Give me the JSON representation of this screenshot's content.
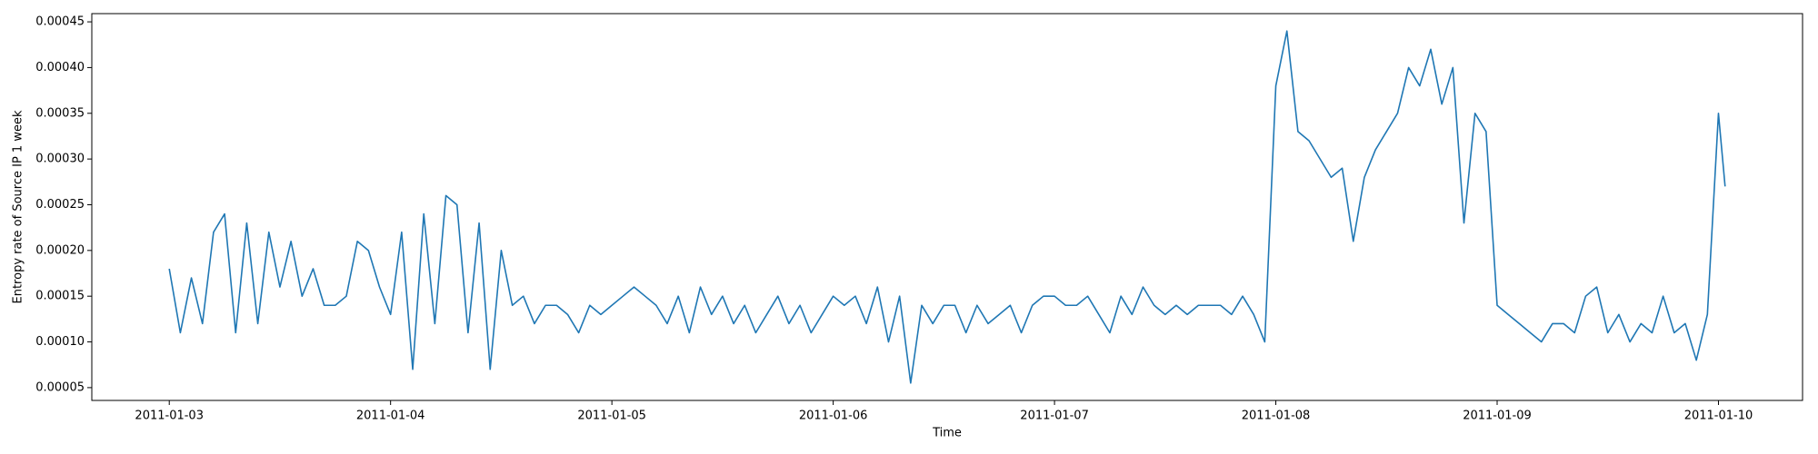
{
  "chart_data": {
    "type": "line",
    "xlabel": "Time",
    "ylabel": "Entropy rate of Source IP 1 week",
    "xlim": [
      2.65,
      10.38
    ],
    "ylim": [
      3.6e-05,
      0.000459
    ],
    "xticks": [
      {
        "value": 3,
        "label": "2011-01-03"
      },
      {
        "value": 4,
        "label": "2011-01-04"
      },
      {
        "value": 5,
        "label": "2011-01-05"
      },
      {
        "value": 6,
        "label": "2011-01-06"
      },
      {
        "value": 7,
        "label": "2011-01-07"
      },
      {
        "value": 8,
        "label": "2011-01-08"
      },
      {
        "value": 9,
        "label": "2011-01-09"
      },
      {
        "value": 10,
        "label": "2011-01-10"
      }
    ],
    "yticks": [
      5e-05,
      {
        "value": 0.0001,
        "label": "0.00010"
      },
      0.00015,
      {
        "value": 0.0002,
        "label": "0.00020"
      },
      0.00025,
      {
        "value": 0.0003,
        "label": "0.00030"
      },
      0.00035,
      {
        "value": 0.0004,
        "label": "0.00040"
      },
      0.00045
    ],
    "x": [
      3.0,
      3.05,
      3.1,
      3.15,
      3.2,
      3.25,
      3.3,
      3.35,
      3.4,
      3.45,
      3.5,
      3.55,
      3.6,
      3.65,
      3.7,
      3.75,
      3.8,
      3.85,
      3.9,
      3.95,
      4.0,
      4.05,
      4.1,
      4.15,
      4.2,
      4.25,
      4.3,
      4.35,
      4.4,
      4.45,
      4.5,
      4.55,
      4.6,
      4.65,
      4.7,
      4.75,
      4.8,
      4.85,
      4.9,
      4.95,
      5.0,
      5.05,
      5.1,
      5.15,
      5.2,
      5.25,
      5.3,
      5.35,
      5.4,
      5.45,
      5.5,
      5.55,
      5.6,
      5.65,
      5.7,
      5.75,
      5.8,
      5.85,
      5.9,
      5.95,
      6.0,
      6.05,
      6.1,
      6.15,
      6.2,
      6.25,
      6.3,
      6.35,
      6.4,
      6.45,
      6.5,
      6.55,
      6.6,
      6.65,
      6.7,
      6.75,
      6.8,
      6.85,
      6.9,
      6.95,
      7.0,
      7.05,
      7.1,
      7.15,
      7.2,
      7.25,
      7.3,
      7.35,
      7.4,
      7.45,
      7.5,
      7.55,
      7.6,
      7.65,
      7.7,
      7.75,
      7.8,
      7.85,
      7.9,
      7.95,
      8.0,
      8.05,
      8.1,
      8.15,
      8.2,
      8.25,
      8.3,
      8.35,
      8.4,
      8.45,
      8.5,
      8.55,
      8.6,
      8.65,
      8.7,
      8.75,
      8.8,
      8.85,
      8.9,
      8.95,
      9.0,
      9.05,
      9.1,
      9.15,
      9.2,
      9.25,
      9.3,
      9.35,
      9.4,
      9.45,
      9.5,
      9.55,
      9.6,
      9.65,
      9.7,
      9.75,
      9.8,
      9.85,
      9.9,
      9.95,
      10.0,
      10.03
    ],
    "series": [
      {
        "color": "#1f77b4",
        "values": [
          0.00018,
          0.00011,
          0.00017,
          0.00012,
          0.00022,
          0.00024,
          0.00011,
          0.00023,
          0.00012,
          0.00022,
          0.00016,
          0.00021,
          0.00015,
          0.00018,
          0.00014,
          0.00014,
          0.00015,
          0.00021,
          0.0002,
          0.00016,
          0.00013,
          0.00022,
          7e-05,
          0.00024,
          0.00012,
          0.00026,
          0.00025,
          0.00011,
          0.00023,
          7e-05,
          0.0002,
          0.00014,
          0.00015,
          0.00012,
          0.00014,
          0.00014,
          0.00013,
          0.00011,
          0.00014,
          0.00013,
          0.00014,
          0.00015,
          0.00016,
          0.00015,
          0.00014,
          0.00012,
          0.00015,
          0.00011,
          0.00016,
          0.00013,
          0.00015,
          0.00012,
          0.00014,
          0.00011,
          0.00013,
          0.00015,
          0.00012,
          0.00014,
          0.00011,
          0.00013,
          0.00015,
          0.00014,
          0.00015,
          0.00012,
          0.00016,
          0.0001,
          0.00015,
          5.5e-05,
          0.00014,
          0.00012,
          0.00014,
          0.00014,
          0.00011,
          0.00014,
          0.00012,
          0.00013,
          0.00014,
          0.00011,
          0.00014,
          0.00015,
          0.00015,
          0.00014,
          0.00014,
          0.00015,
          0.00013,
          0.00011,
          0.00015,
          0.00013,
          0.00016,
          0.00014,
          0.00013,
          0.00014,
          0.00013,
          0.00014,
          0.00014,
          0.00014,
          0.00013,
          0.00015,
          0.00013,
          0.0001,
          0.00038,
          0.00044,
          0.00033,
          0.00032,
          0.0003,
          0.00028,
          0.00029,
          0.00021,
          0.00028,
          0.00031,
          0.00033,
          0.00035,
          0.0004,
          0.00038,
          0.00042,
          0.00036,
          0.0004,
          0.00023,
          0.00035,
          0.00033,
          0.00014,
          0.00013,
          0.00012,
          0.00011,
          0.0001,
          0.00012,
          0.00012,
          0.00011,
          0.00015,
          0.00016,
          0.00011,
          0.00013,
          0.0001,
          0.00012,
          0.00011,
          0.00015,
          0.00011,
          0.00012,
          8e-05,
          0.00013,
          0.00035,
          0.00027
        ]
      }
    ]
  }
}
